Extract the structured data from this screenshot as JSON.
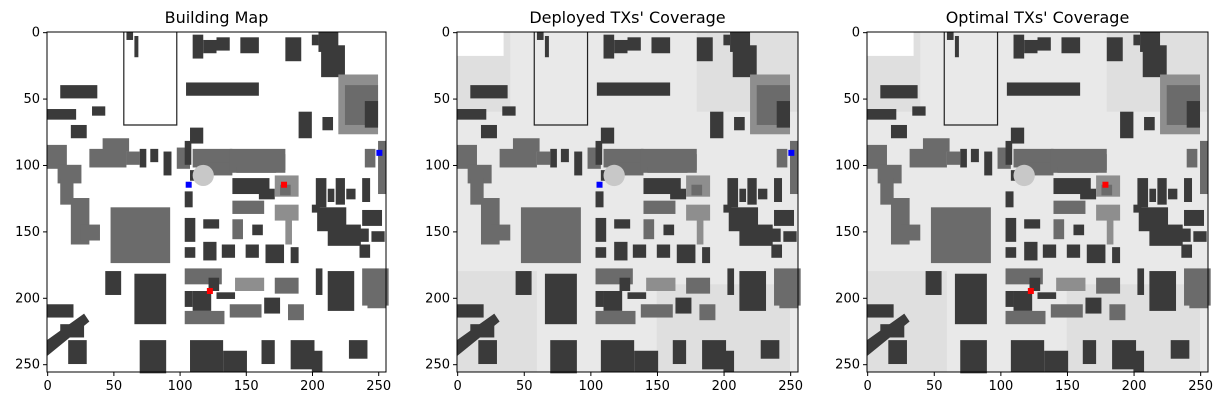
{
  "panels": [
    {
      "title": "Building Map",
      "background": "white"
    },
    {
      "title": "Deployed TXs' Coverage",
      "background": "coverage"
    },
    {
      "title": "Optimal TXs' Coverage",
      "background": "coverage"
    }
  ],
  "axes": {
    "x_ticks": [
      "0",
      "50",
      "100",
      "150",
      "200",
      "250"
    ],
    "y_ticks": [
      "0",
      "50",
      "100",
      "150",
      "200",
      "250"
    ],
    "range": [
      0,
      256
    ]
  },
  "markers": {
    "building_map": [
      {
        "x": 107,
        "y": 115,
        "color": "#0000ff"
      },
      {
        "x": 251,
        "y": 91,
        "color": "#0000ff"
      },
      {
        "x": 179,
        "y": 115,
        "color": "#ff0000"
      },
      {
        "x": 123,
        "y": 195,
        "color": "#ff0000"
      }
    ],
    "deployed": [
      {
        "x": 107,
        "y": 115,
        "color": "#0000ff"
      },
      {
        "x": 251,
        "y": 91,
        "color": "#0000ff"
      }
    ],
    "optimal": [
      {
        "x": 179,
        "y": 115,
        "color": "#ff0000"
      },
      {
        "x": 123,
        "y": 195,
        "color": "#ff0000"
      }
    ]
  },
  "colors": {
    "building_dark": "#3a3a3a",
    "building_mid": "#6b6b6b",
    "building_light": "#8e8e8e",
    "coverage_bg": "#e9e9e9"
  }
}
